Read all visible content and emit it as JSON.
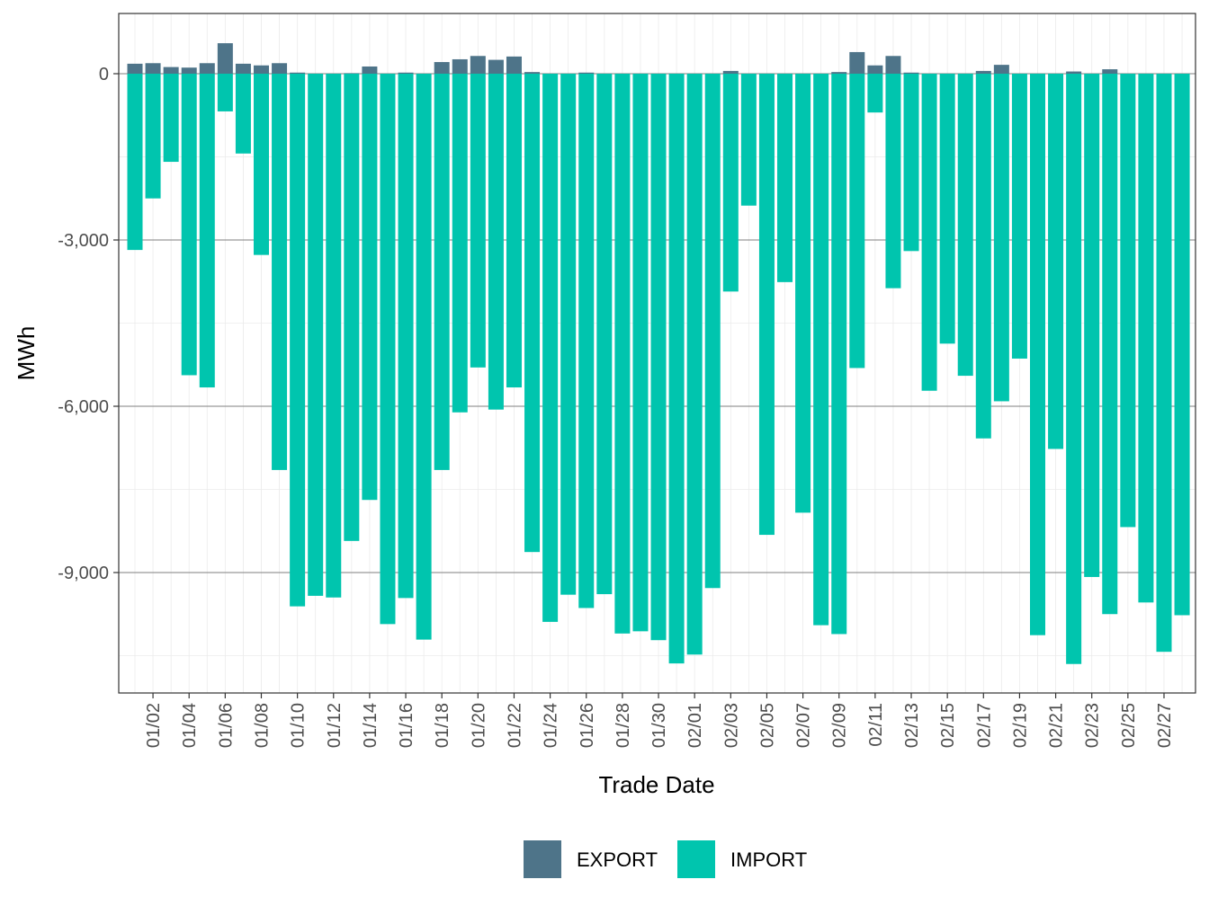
{
  "chart_data": {
    "type": "bar",
    "stacked": true,
    "xlabel": "Trade Date",
    "ylabel": "MWh",
    "ylim": [
      -11200,
      1100
    ],
    "yticks": [
      0,
      -3000,
      -6000,
      -9000
    ],
    "ytick_labels": [
      "0",
      "-3,000",
      "-6,000",
      "-9,000"
    ],
    "grid": true,
    "legend_position": "bottom",
    "categories": [
      "01/01",
      "01/02",
      "01/03",
      "01/04",
      "01/05",
      "01/06",
      "01/07",
      "01/08",
      "01/09",
      "01/10",
      "01/11",
      "01/12",
      "01/13",
      "01/14",
      "01/15",
      "01/16",
      "01/17",
      "01/18",
      "01/19",
      "01/20",
      "01/21",
      "01/22",
      "01/23",
      "01/24",
      "01/25",
      "01/26",
      "01/27",
      "01/28",
      "01/29",
      "01/30",
      "01/31",
      "02/01",
      "02/02",
      "02/03",
      "02/04",
      "02/05",
      "02/06",
      "02/07",
      "02/08",
      "02/09",
      "02/10",
      "02/11",
      "02/12",
      "02/13",
      "02/14",
      "02/15",
      "02/16",
      "02/17",
      "02/18",
      "02/19",
      "02/20",
      "02/21",
      "02/22",
      "02/23",
      "02/24",
      "02/25",
      "02/26",
      "02/27",
      "02/28"
    ],
    "xtick_labels": [
      "01/02",
      "01/04",
      "01/06",
      "01/08",
      "01/10",
      "01/12",
      "01/14",
      "01/16",
      "01/18",
      "01/20",
      "01/22",
      "01/24",
      "01/26",
      "01/28",
      "01/30",
      "02/01",
      "02/03",
      "02/05",
      "02/07",
      "02/09",
      "02/11",
      "02/13",
      "02/15",
      "02/17",
      "02/19",
      "02/21",
      "02/23",
      "02/25",
      "02/27"
    ],
    "series": [
      {
        "name": "EXPORT",
        "color": "#4e7489",
        "values": [
          180,
          190,
          120,
          110,
          190,
          550,
          180,
          150,
          190,
          20,
          0,
          0,
          10,
          130,
          0,
          20,
          0,
          210,
          260,
          320,
          250,
          310,
          30,
          0,
          0,
          20,
          0,
          0,
          0,
          0,
          0,
          0,
          0,
          50,
          0,
          0,
          0,
          0,
          0,
          30,
          390,
          150,
          320,
          20,
          0,
          0,
          0,
          50,
          160,
          0,
          0,
          0,
          40,
          0,
          80,
          0,
          0,
          0,
          0
        ]
      },
      {
        "name": "IMPORT",
        "color": "#00c5ae",
        "values": [
          -3180,
          -2250,
          -1590,
          -5440,
          -5660,
          -680,
          -1440,
          -3270,
          -7150,
          -9610,
          -9420,
          -9450,
          -8430,
          -7690,
          -9930,
          -9460,
          -10210,
          -7150,
          -6110,
          -5300,
          -6060,
          -5660,
          -8630,
          -9890,
          -9400,
          -9640,
          -9390,
          -10100,
          -10060,
          -10220,
          -10640,
          -10480,
          -9280,
          -3930,
          -2380,
          -8320,
          -3760,
          -7920,
          -9950,
          -10110,
          -5310,
          -700,
          -3870,
          -3200,
          -5720,
          -4870,
          -5450,
          -6580,
          -5910,
          -5140,
          -10130,
          -6770,
          -10650,
          -9080,
          -9750,
          -8180,
          -9540,
          -10430,
          -9770
        ]
      }
    ]
  }
}
